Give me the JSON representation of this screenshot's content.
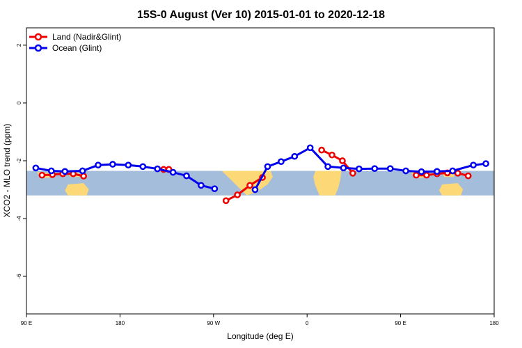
{
  "chart_data": {
    "type": "line",
    "title": "15S-0 August (Ver 10)   2015-01-01 to 2020-12-18",
    "xlabel": "Longitude (deg E)",
    "ylabel": "XCO2 - MLO trend (ppm)",
    "xlim": [
      90,
      540
    ],
    "ylim": [
      -7.3,
      2.6
    ],
    "x_ticks": [
      {
        "value": 90,
        "label": "90 E"
      },
      {
        "value": 180,
        "label": "180"
      },
      {
        "value": 270,
        "label": "90 W"
      },
      {
        "value": 360,
        "label": "0"
      },
      {
        "value": 450,
        "label": "90 E"
      },
      {
        "value": 540,
        "label": "180"
      }
    ],
    "y_ticks": [
      {
        "value": 2,
        "label": "2"
      },
      {
        "value": 0,
        "label": "0"
      },
      {
        "value": -2,
        "label": "-2"
      },
      {
        "value": -4,
        "label": "-4"
      },
      {
        "value": -6,
        "label": "-6"
      }
    ],
    "map_band": {
      "lat_range_deg": [
        -15,
        0
      ],
      "y_range": [
        -3.2,
        -2.35
      ]
    },
    "colors": {
      "land": "#ee0000",
      "ocean": "#0000ee",
      "sea": "#a4bddb",
      "continent": "#fcd976"
    },
    "series": [
      {
        "name": "Land (Nadir&Glint)",
        "color": "#ee0000",
        "segments": [
          {
            "x": [
              105,
              115,
              125,
              135,
              145
            ],
            "y": [
              -2.5,
              -2.48,
              -2.45,
              -2.45,
              -2.53
            ]
          },
          {
            "x": [
              222,
              227
            ],
            "y": [
              -2.3,
              -2.3
            ]
          },
          {
            "x": [
              282,
              293,
              305,
              317
            ],
            "y": [
              -3.38,
              -3.18,
              -2.85,
              -2.58
            ]
          },
          {
            "x": [
              374,
              384,
              394,
              404
            ],
            "y": [
              -1.63,
              -1.8,
              -2.0,
              -2.43
            ]
          },
          {
            "x": [
              465,
              475,
              485,
              495,
              505,
              515
            ],
            "y": [
              -2.5,
              -2.5,
              -2.45,
              -2.42,
              -2.43,
              -2.52
            ]
          }
        ]
      },
      {
        "name": "Ocean (Glint)",
        "color": "#0000ee",
        "segments": [
          {
            "x": [
              99,
              114,
              127,
              144,
              159,
              173,
              188,
              202,
              216,
              231,
              244,
              258,
              271
            ],
            "y": [
              -2.25,
              -2.35,
              -2.37,
              -2.35,
              -2.15,
              -2.12,
              -2.15,
              -2.2,
              -2.28,
              -2.4,
              -2.52,
              -2.85,
              -2.97
            ]
          },
          {
            "x": [
              310,
              322,
              335,
              348,
              363,
              380,
              395,
              410,
              425,
              440,
              455,
              470,
              485,
              500,
              520,
              532
            ],
            "y": [
              -3.0,
              -2.2,
              -2.03,
              -1.85,
              -1.55,
              -2.2,
              -2.25,
              -2.28,
              -2.27,
              -2.27,
              -2.35,
              -2.38,
              -2.37,
              -2.35,
              -2.15,
              -2.1
            ]
          }
        ]
      }
    ],
    "legend": {
      "position": "top-left",
      "entries": [
        "Land (Nadir&Glint)",
        "Ocean (Glint)"
      ]
    }
  }
}
